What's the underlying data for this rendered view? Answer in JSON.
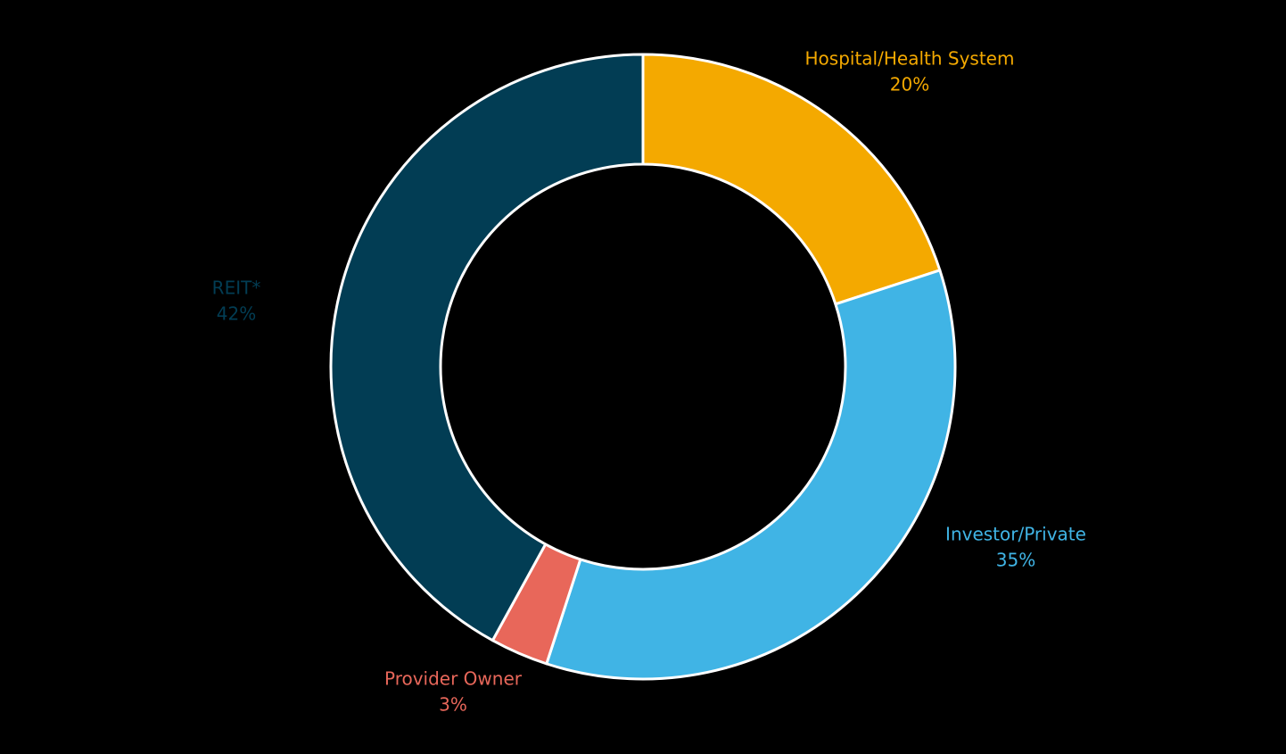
{
  "chart_data": {
    "type": "pie",
    "variant": "donut",
    "title": "",
    "slices": [
      {
        "label": "Hospital/Health System",
        "value": 20,
        "value_label": "20%",
        "color": "#f4a900"
      },
      {
        "label": "Investor/Private",
        "value": 35,
        "value_label": "35%",
        "color": "#40b4e5"
      },
      {
        "label": "Provider Owner",
        "value": 3,
        "value_label": "3%",
        "color": "#e8675a"
      },
      {
        "label": "REIT*",
        "value": 42,
        "value_label": "42%",
        "color": "#023d54"
      }
    ],
    "start_angle_deg": 0,
    "direction": "clockwise",
    "legend": "none",
    "background": "#000000",
    "separator_color": "#ffffff"
  }
}
